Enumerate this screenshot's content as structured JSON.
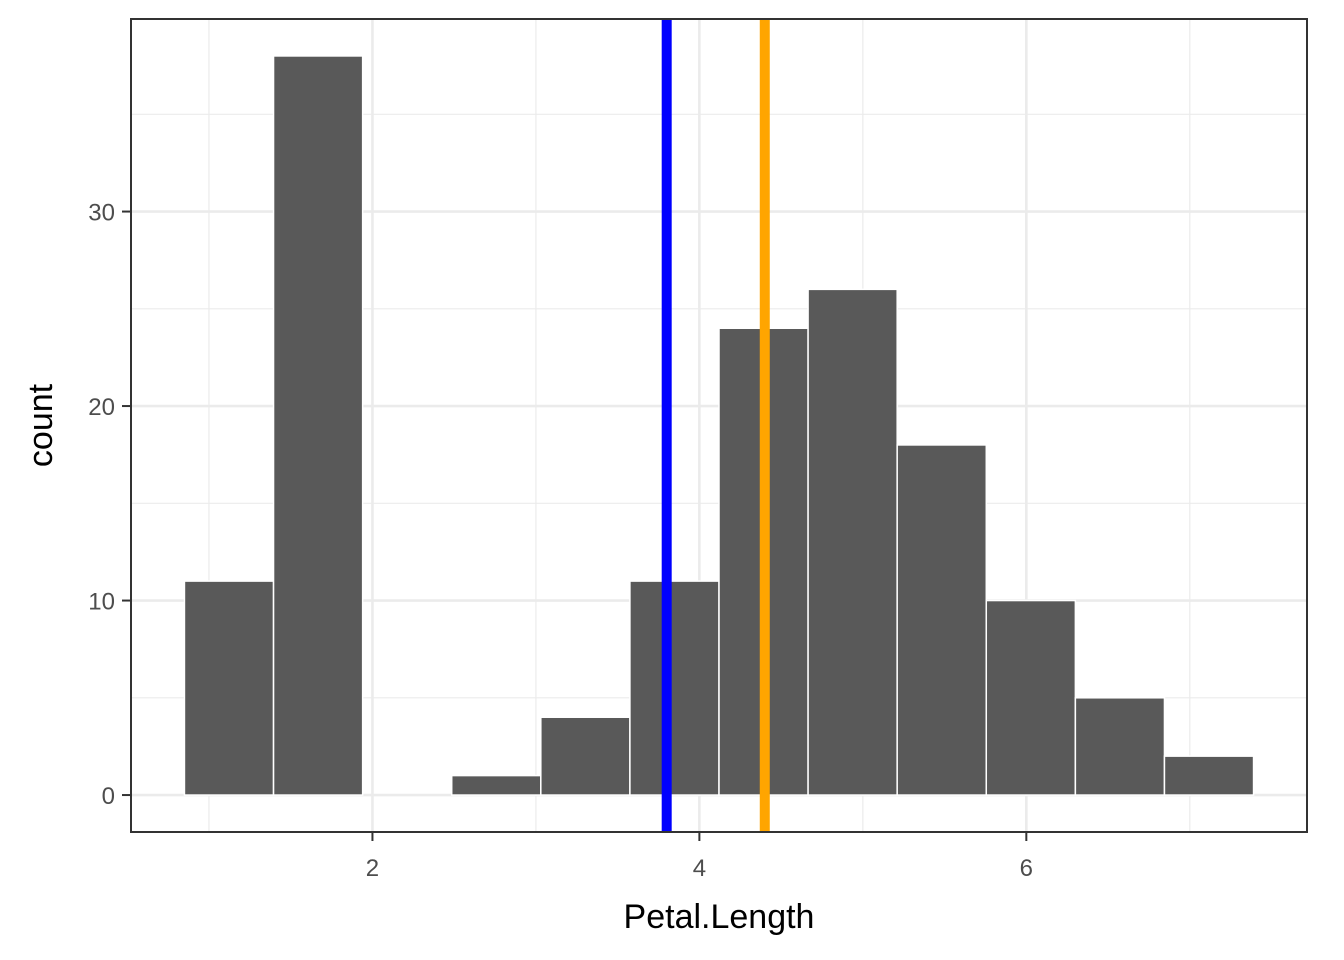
{
  "chart_data": {
    "type": "bar",
    "title": "",
    "xlabel": "Petal.Length",
    "ylabel": "count",
    "bins": [
      {
        "x0": 0.85,
        "x1": 1.395,
        "count": 11
      },
      {
        "x0": 1.395,
        "x1": 1.94,
        "count": 38
      },
      {
        "x0": 1.94,
        "x1": 2.485,
        "count": 0
      },
      {
        "x0": 2.485,
        "x1": 3.03,
        "count": 1
      },
      {
        "x0": 3.03,
        "x1": 3.575,
        "count": 4
      },
      {
        "x0": 3.575,
        "x1": 4.12,
        "count": 11
      },
      {
        "x0": 4.12,
        "x1": 4.665,
        "count": 24
      },
      {
        "x0": 4.665,
        "x1": 5.21,
        "count": 26
      },
      {
        "x0": 5.21,
        "x1": 5.755,
        "count": 18
      },
      {
        "x0": 5.755,
        "x1": 6.3,
        "count": 10
      },
      {
        "x0": 6.3,
        "x1": 6.845,
        "count": 5
      },
      {
        "x0": 6.845,
        "x1": 7.39,
        "count": 2
      }
    ],
    "vlines": [
      {
        "x": 3.8,
        "color": "#0000ff"
      },
      {
        "x": 4.4,
        "color": "#ffa500"
      }
    ],
    "xlim": [
      0.523,
      7.717
    ],
    "ylim": [
      -1.9,
      39.9
    ],
    "x_ticks": [
      2,
      4,
      6
    ],
    "x_tick_labels": [
      "2",
      "4",
      "6"
    ],
    "x_minor_ticks": [
      1,
      3,
      5,
      7
    ],
    "y_ticks": [
      0,
      10,
      20,
      30
    ],
    "y_tick_labels": [
      "0",
      "10",
      "20",
      "30"
    ],
    "y_minor_ticks": [
      5,
      15,
      25,
      35
    ],
    "grid": true,
    "bar_fill": "#595959",
    "bar_outline": "#ffffff",
    "panel_border": "#333333",
    "grid_color": "#ebebeb"
  }
}
